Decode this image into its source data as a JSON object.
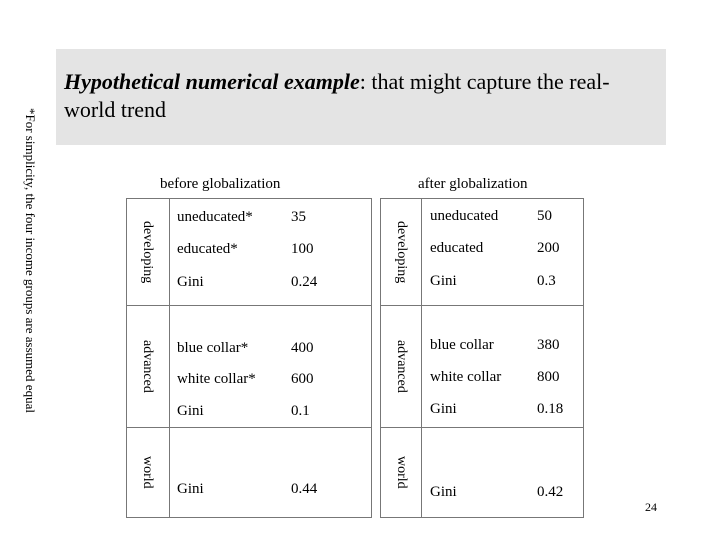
{
  "title": {
    "lead": "Hypothetical numerical example",
    "rest": ": that might capture the real-world trend"
  },
  "side_note": "*For simplicity, the four income groups are assumed equal",
  "panels": [
    {
      "heading": "before globalization",
      "groups": [
        {
          "label": "developing",
          "rows": [
            {
              "name": "uneducated*",
              "value": "35"
            },
            {
              "name": "educated*",
              "value": "100"
            },
            {
              "name": "Gini",
              "value": "0.24"
            }
          ]
        },
        {
          "label": "advanced",
          "rows": [
            {
              "name": "blue collar*",
              "value": "400"
            },
            {
              "name": "white collar*",
              "value": "600"
            },
            {
              "name": "Gini",
              "value": "0.1"
            }
          ]
        },
        {
          "label": "world",
          "rows": [
            {
              "name": "Gini",
              "value": "0.44"
            }
          ]
        }
      ]
    },
    {
      "heading": "after globalization",
      "groups": [
        {
          "label": "developing",
          "rows": [
            {
              "name": "uneducated",
              "value": "50"
            },
            {
              "name": "educated",
              "value": "200"
            },
            {
              "name": "Gini",
              "value": "0.3"
            }
          ]
        },
        {
          "label": "advanced",
          "rows": [
            {
              "name": "blue collar",
              "value": "380"
            },
            {
              "name": "white collar",
              "value": "800"
            },
            {
              "name": "Gini",
              "value": "0.18"
            }
          ]
        },
        {
          "label": "world",
          "rows": [
            {
              "name": "Gini",
              "value": "0.42"
            }
          ]
        }
      ]
    }
  ],
  "page_number": "24"
}
